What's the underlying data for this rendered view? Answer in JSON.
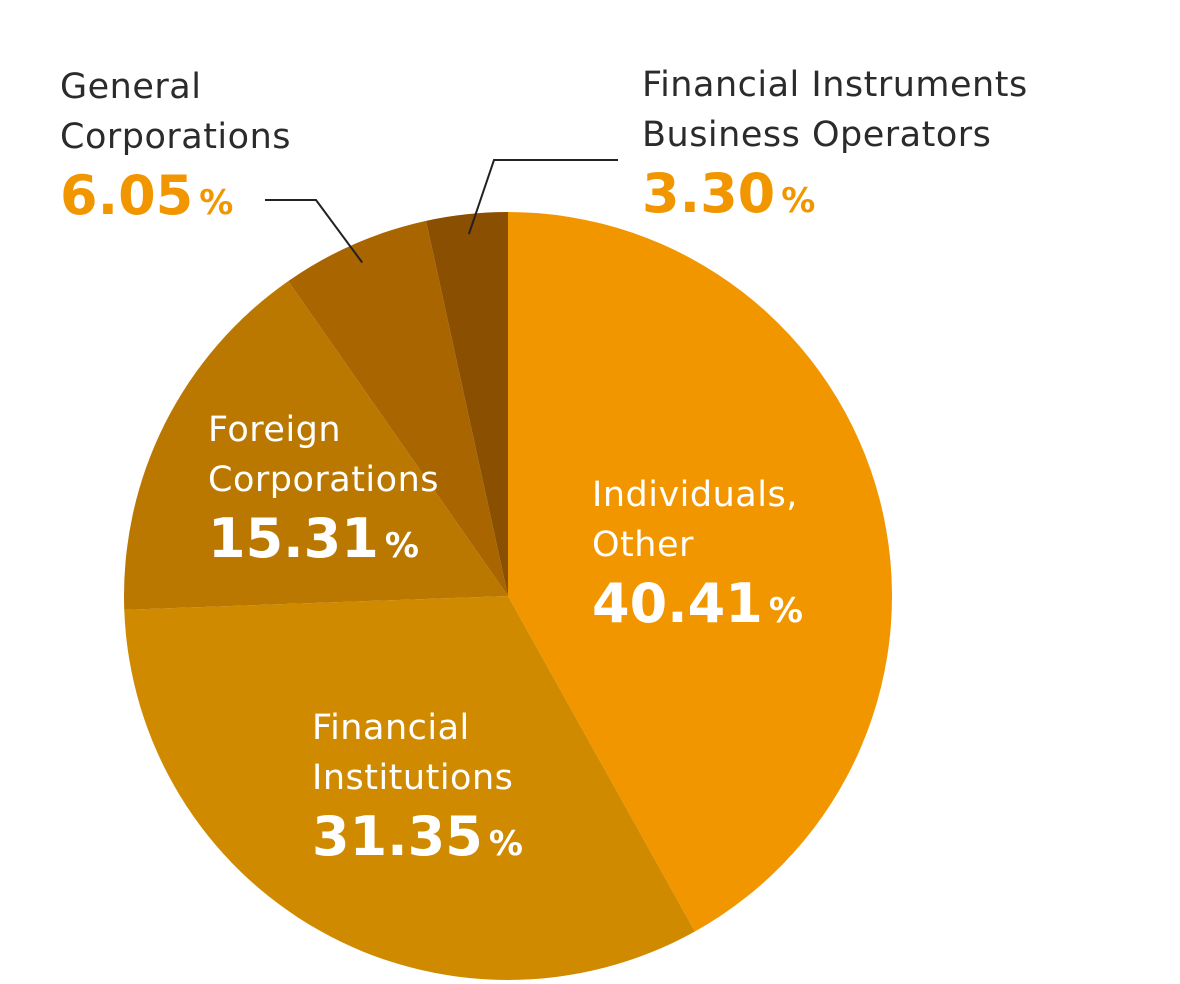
{
  "chart_data": {
    "type": "pie",
    "unit": "%",
    "slices": [
      {
        "label_lines": [
          "Individuals,",
          "Other"
        ],
        "value": 40.41,
        "display": "40.41",
        "color": "#f29600"
      },
      {
        "label_lines": [
          "Financial",
          "Institutions"
        ],
        "value": 31.35,
        "display": "31.35",
        "color": "#d08a00"
      },
      {
        "label_lines": [
          "Foreign",
          "Corporations"
        ],
        "value": 15.31,
        "display": "15.31",
        "color": "#bb7800"
      },
      {
        "label_lines": [
          "General",
          "Corporations"
        ],
        "value": 6.05,
        "display": "6.05",
        "color": "#a96600"
      },
      {
        "label_lines": [
          "Financial Instruments",
          "Business Operators"
        ],
        "value": 3.3,
        "display": "3.30",
        "color": "#8a4f00"
      }
    ],
    "start": "12 o'clock",
    "direction": "clockwise",
    "leader_line_color": "#222222"
  }
}
